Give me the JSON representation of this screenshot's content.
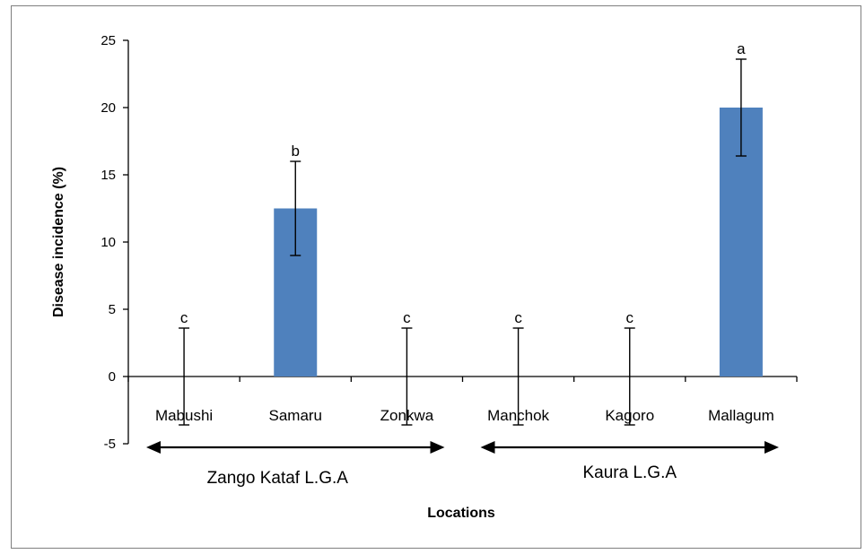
{
  "chart_data": {
    "type": "bar",
    "title": "",
    "xlabel": "Locations",
    "ylabel": "Disease incidence  (%)",
    "ylim": [
      -5,
      25
    ],
    "yticks": [
      -5,
      0,
      5,
      10,
      15,
      20,
      25
    ],
    "categories": [
      "Mabushi",
      "Samaru",
      "Zonkwa",
      "Manchok",
      "Kagoro",
      "Mallagum"
    ],
    "values": [
      0,
      12.5,
      0,
      0,
      0,
      20
    ],
    "error": [
      3.6,
      3.5,
      3.6,
      3.6,
      3.6,
      3.6
    ],
    "letters": [
      "c",
      "b",
      "c",
      "c",
      "c",
      "a"
    ],
    "bar_color": "#4f81bd",
    "grid": false,
    "groups": [
      {
        "label": "Zango Kataf L.G.A",
        "from": "Mabushi",
        "to": "Zonkwa"
      },
      {
        "label": "Kaura L.G.A",
        "from": "Manchok",
        "to": "Mallagum"
      }
    ]
  }
}
